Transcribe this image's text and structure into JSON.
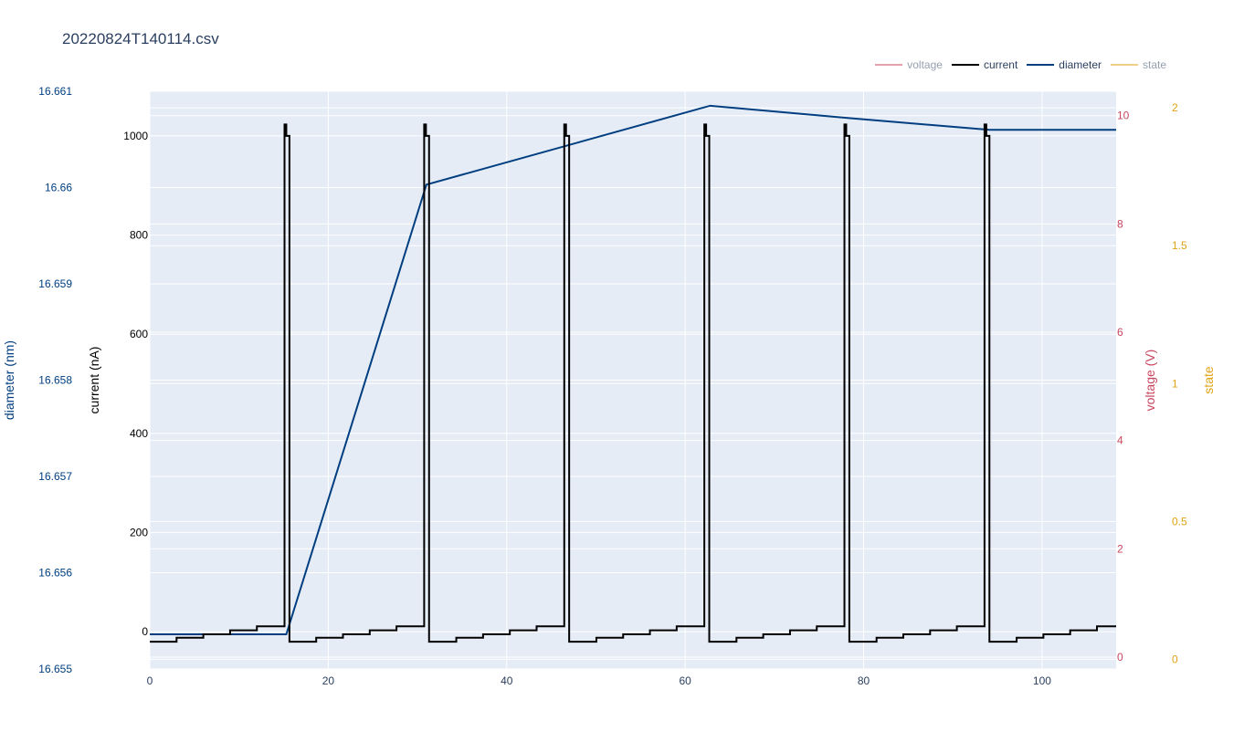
{
  "title": "20220824T140114.csv",
  "colors": {
    "plot_bg": "#e5ecf6",
    "grid": "#ffffff",
    "voltage": "#c8465e",
    "current": "#000000",
    "diameter": "#003e80",
    "state": "#e0a316",
    "text": "#2a3f5f"
  },
  "legend": [
    {
      "key": "voltage",
      "label": "voltage",
      "color": "#c8465e",
      "visible": false
    },
    {
      "key": "current",
      "label": "current",
      "color": "#000000",
      "visible": true
    },
    {
      "key": "diameter",
      "label": "diameter",
      "color": "#003e80",
      "visible": true
    },
    {
      "key": "state",
      "label": "state",
      "color": "#e0a316",
      "visible": false
    }
  ],
  "chart_data": {
    "type": "line",
    "title": "20220824T140114.csv",
    "legend_placement": "top-right",
    "grid": true,
    "x_axis": {
      "label": "",
      "range": [
        0,
        108.3
      ],
      "ticks": [
        0,
        20,
        40,
        60,
        80,
        100
      ]
    },
    "axes": {
      "current": {
        "label": "current (nA)",
        "side": "left",
        "range": [
          -75,
          1090
        ],
        "ticks": [
          0,
          200,
          400,
          600,
          800,
          1000
        ],
        "color": "#000000"
      },
      "diameter": {
        "label": "diameter (nm)",
        "side": "left",
        "range": [
          16.655,
          16.661
        ],
        "ticks": [
          16.655,
          16.656,
          16.657,
          16.658,
          16.659,
          16.66,
          16.661
        ],
        "tick_labels": [
          "16.655",
          "16.656",
          "16.657",
          "16.658",
          "16.659",
          "16.66",
          "16.661"
        ],
        "color": "#003e80"
      },
      "voltage": {
        "label": "voltage (V)",
        "side": "right",
        "range": [
          -0.22,
          10.45
        ],
        "ticks": [
          0,
          2,
          4,
          6,
          8,
          10
        ],
        "color": "#c8465e"
      },
      "state": {
        "label": "state",
        "side": "right",
        "range": [
          -0.035,
          2.06
        ],
        "ticks": [
          0,
          0.5,
          1,
          1.5,
          2
        ],
        "color": "#e0a316"
      }
    },
    "series": [
      {
        "name": "diameter",
        "axis": "diameter",
        "color": "#003e80",
        "x": [
          0,
          15.3,
          31.0,
          62.8,
          78.5,
          94.1,
          108.3
        ],
        "y": [
          16.65536,
          16.65536,
          16.66003,
          16.66085,
          16.66072,
          16.6606,
          16.6606
        ]
      },
      {
        "name": "current",
        "axis": "current",
        "color": "#000000",
        "cycle_offsets": [
          0,
          15.65,
          31.35,
          47.05,
          62.75,
          78.45,
          94.15
        ],
        "cycle_points": [
          [
            0,
            -20
          ],
          [
            3.0,
            -20
          ],
          [
            3.0,
            -12
          ],
          [
            6.0,
            -12
          ],
          [
            6.0,
            -5
          ],
          [
            9.0,
            -5
          ],
          [
            9.0,
            3
          ],
          [
            12.0,
            3
          ],
          [
            12.0,
            11
          ],
          [
            15.1,
            11
          ],
          [
            15.1,
            1023
          ],
          [
            15.3,
            1023
          ],
          [
            15.3,
            1000
          ],
          [
            15.65,
            1000
          ],
          [
            15.65,
            -20
          ]
        ],
        "x_end": 108.3
      }
    ]
  }
}
